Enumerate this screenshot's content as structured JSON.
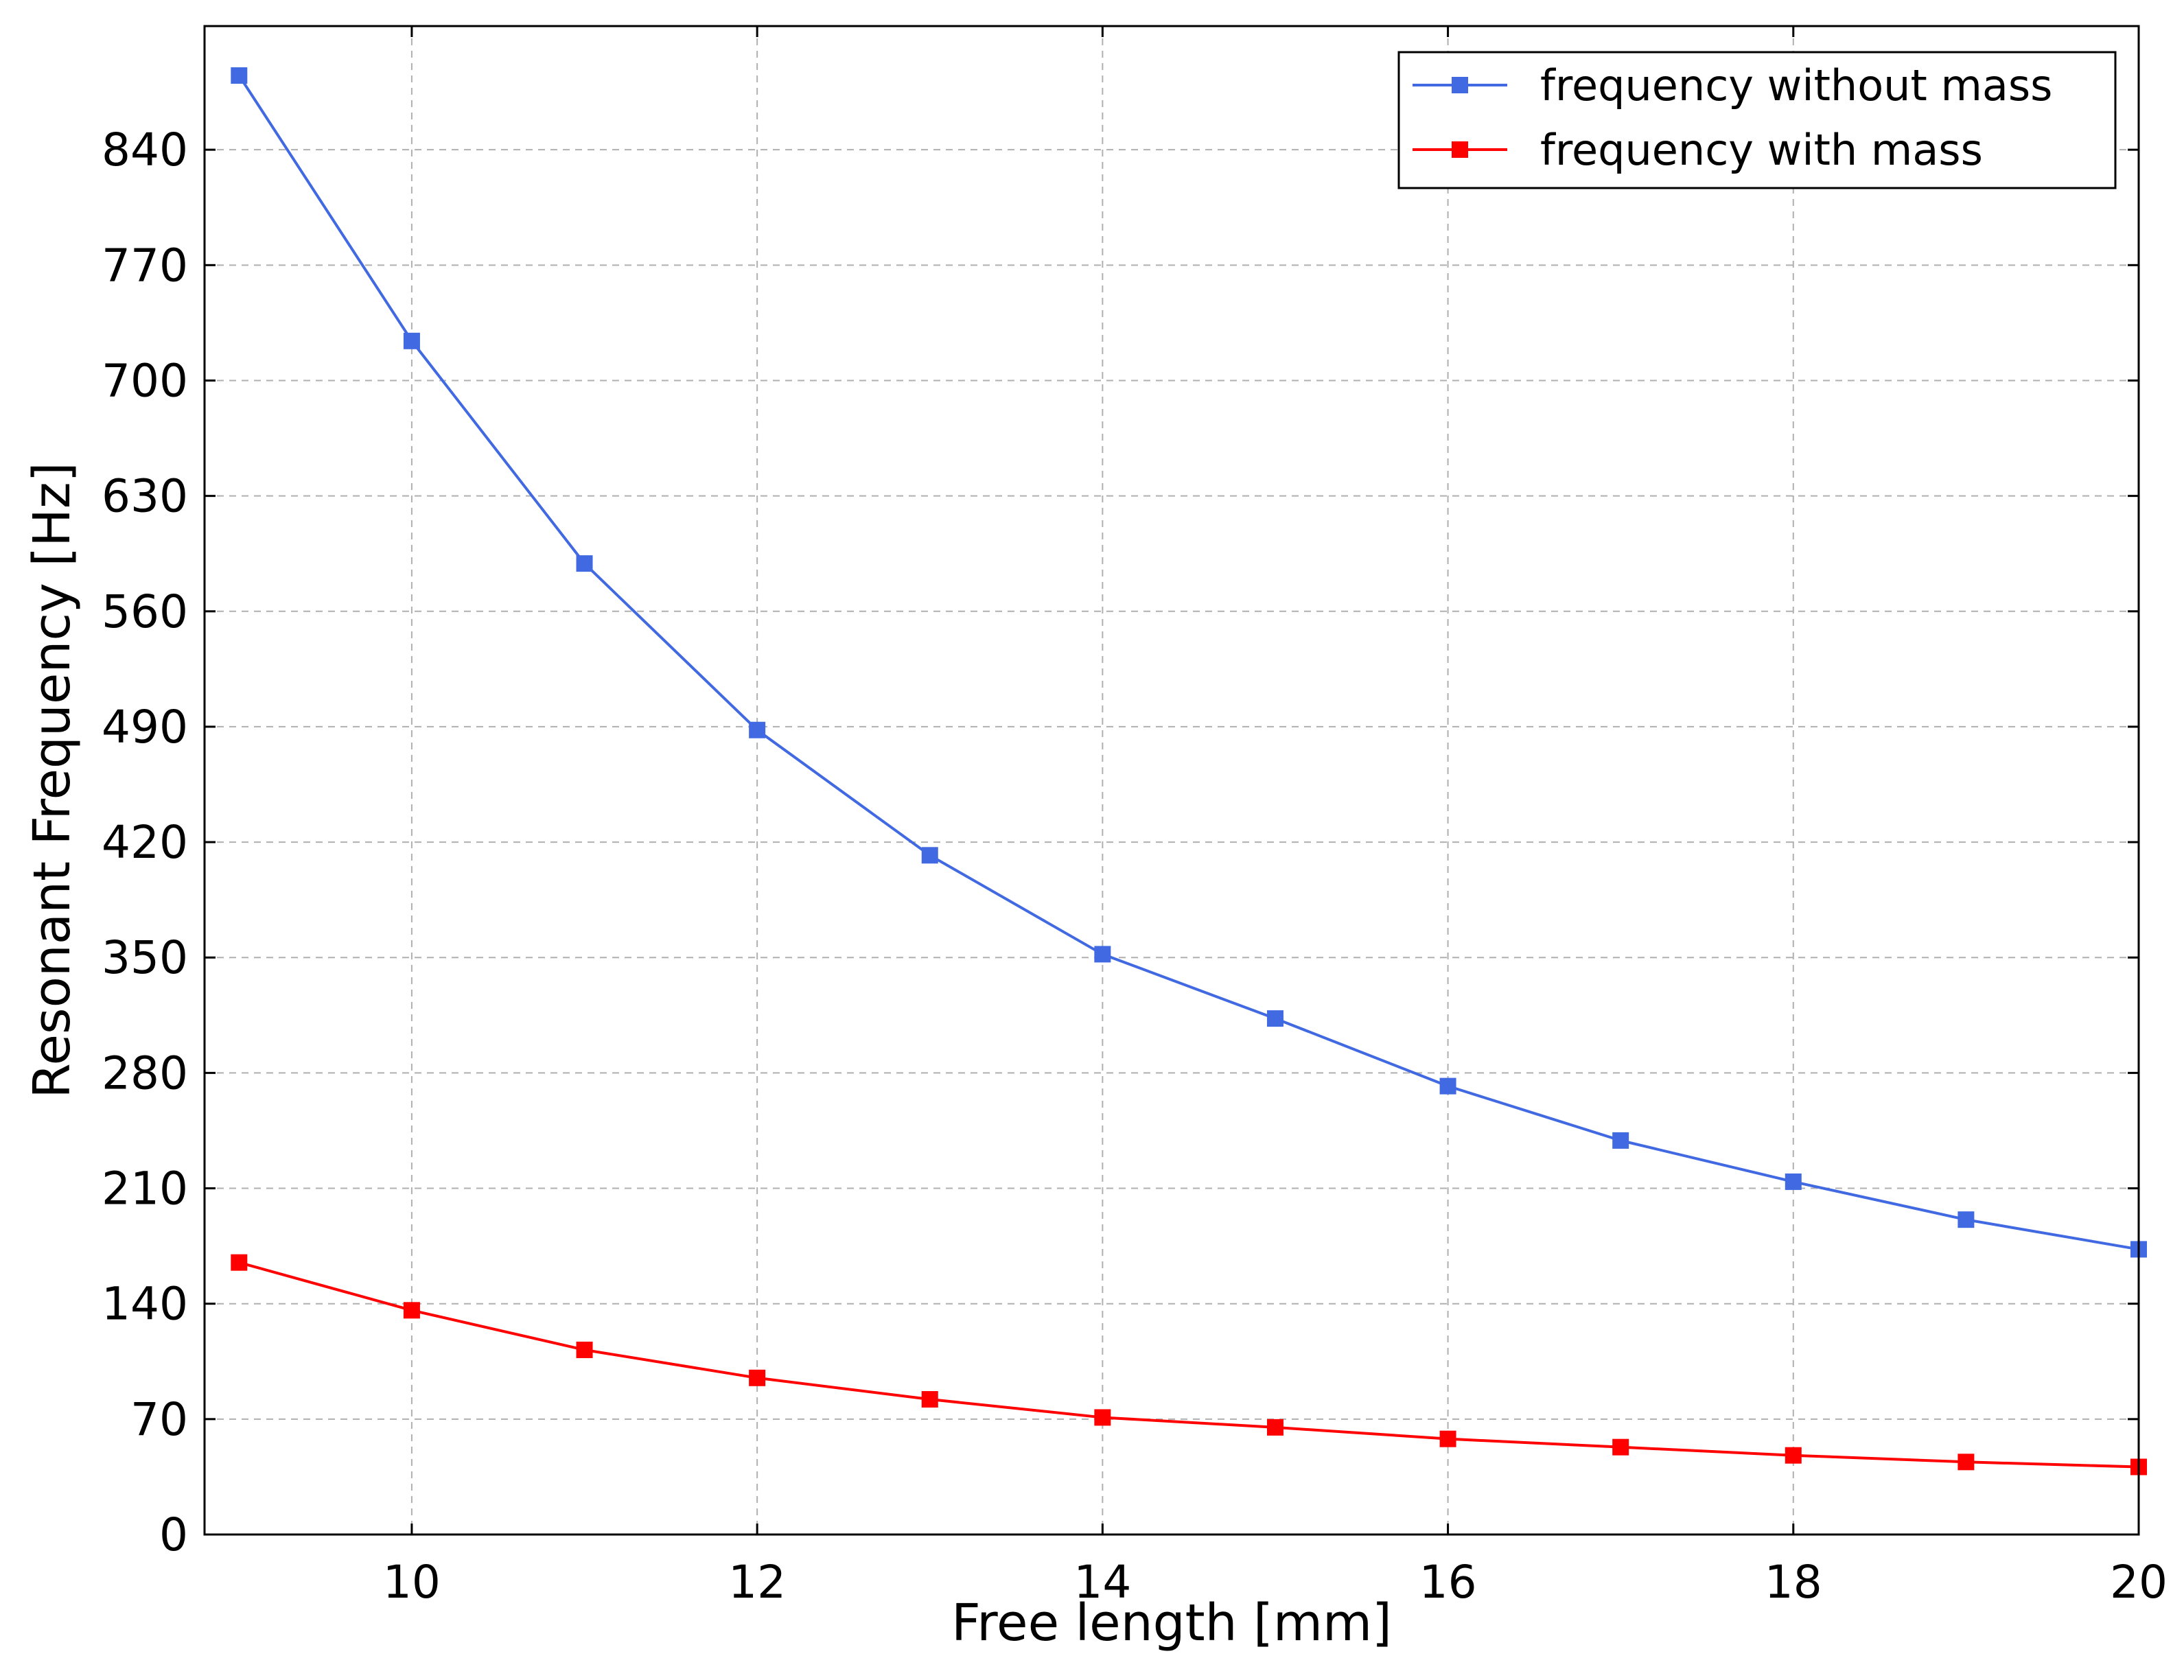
{
  "chart_data": {
    "type": "line",
    "title": "",
    "xlabel": "Free length [mm]",
    "ylabel": "Resonant Frequency [Hz]",
    "xlim": [
      8.8,
      20
    ],
    "ylim": [
      0,
      915
    ],
    "xticks": [
      10,
      12,
      14,
      16,
      18,
      20
    ],
    "yticks": [
      0,
      70,
      140,
      210,
      280,
      350,
      420,
      490,
      560,
      630,
      700,
      770,
      840
    ],
    "grid": true,
    "legend_position": "top-right",
    "x": [
      9,
      10,
      11,
      12,
      13,
      14,
      15,
      16,
      17,
      18,
      19,
      20
    ],
    "series": [
      {
        "name": "frequency without mass",
        "color": "#4169e1",
        "marker": "square",
        "values": [
          885,
          724,
          589,
          488,
          412,
          352,
          313,
          272,
          239,
          214,
          191,
          173
        ]
      },
      {
        "name": "frequency with mass",
        "color": "#ff0000",
        "marker": "square",
        "values": [
          165,
          136,
          112,
          95,
          82,
          71,
          65,
          58,
          53,
          48,
          44,
          41
        ]
      }
    ]
  }
}
